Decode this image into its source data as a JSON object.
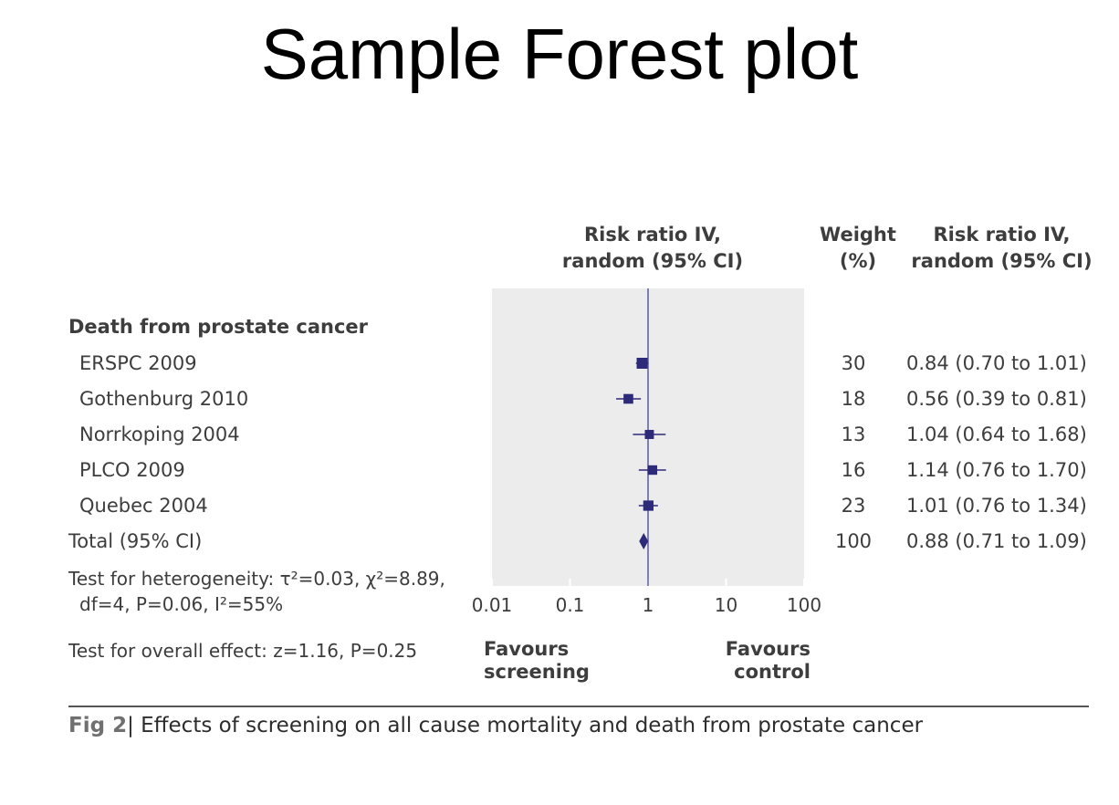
{
  "slide_title": "Sample Forest plot",
  "headers": {
    "plot": [
      "Risk ratio IV,",
      "random (95% CI)"
    ],
    "weight": [
      "Weight",
      "(%)"
    ],
    "ci": [
      "Risk ratio IV,",
      "random (95% CI)"
    ]
  },
  "chart_data": {
    "type": "forest",
    "group_title": "Death from prostate cancer",
    "x_scale": "log",
    "xlim": [
      0.01,
      100
    ],
    "ticks": [
      "0.01",
      "0.1",
      "1",
      "10",
      "100"
    ],
    "tick_values": [
      0.01,
      0.1,
      1,
      10,
      100
    ],
    "reference_line": 1,
    "studies": [
      {
        "label": "ERSPC 2009",
        "weight": "30",
        "rr": 0.84,
        "lo": 0.7,
        "hi": 1.01,
        "ci_text": "0.84 (0.70 to 1.01)"
      },
      {
        "label": "Gothenburg 2010",
        "weight": "18",
        "rr": 0.56,
        "lo": 0.39,
        "hi": 0.81,
        "ci_text": "0.56 (0.39 to 0.81)"
      },
      {
        "label": "Norrkoping 2004",
        "weight": "13",
        "rr": 1.04,
        "lo": 0.64,
        "hi": 1.68,
        "ci_text": "1.04 (0.64 to 1.68)"
      },
      {
        "label": "PLCO 2009",
        "weight": "16",
        "rr": 1.14,
        "lo": 0.76,
        "hi": 1.7,
        "ci_text": "1.14 (0.76 to 1.70)"
      },
      {
        "label": "Quebec 2004",
        "weight": "23",
        "rr": 1.01,
        "lo": 0.76,
        "hi": 1.34,
        "ci_text": "1.01 (0.76 to 1.34)"
      }
    ],
    "total": {
      "label": "Total (95% CI)",
      "weight": "100",
      "rr": 0.88,
      "lo": 0.71,
      "hi": 1.09,
      "ci_text": "0.88 (0.71 to 1.09)"
    },
    "heterogeneity": [
      "Test for heterogeneity: τ²=0.03, χ²=8.89,",
      "df=4, P=0.06, I²=55%"
    ],
    "overall_effect": "Test for overall effect: z=1.16, P=0.25",
    "favours_left": [
      "Favours",
      "screening"
    ],
    "favours_right": [
      "Favours",
      "control"
    ],
    "colors": {
      "marker": "#2e2a7a",
      "panel": "#ececec",
      "reference": "#5a5aa8"
    }
  },
  "caption": {
    "fig": "Fig 2",
    "text": "| Effects of screening on all cause mortality and death from prostate cancer"
  }
}
